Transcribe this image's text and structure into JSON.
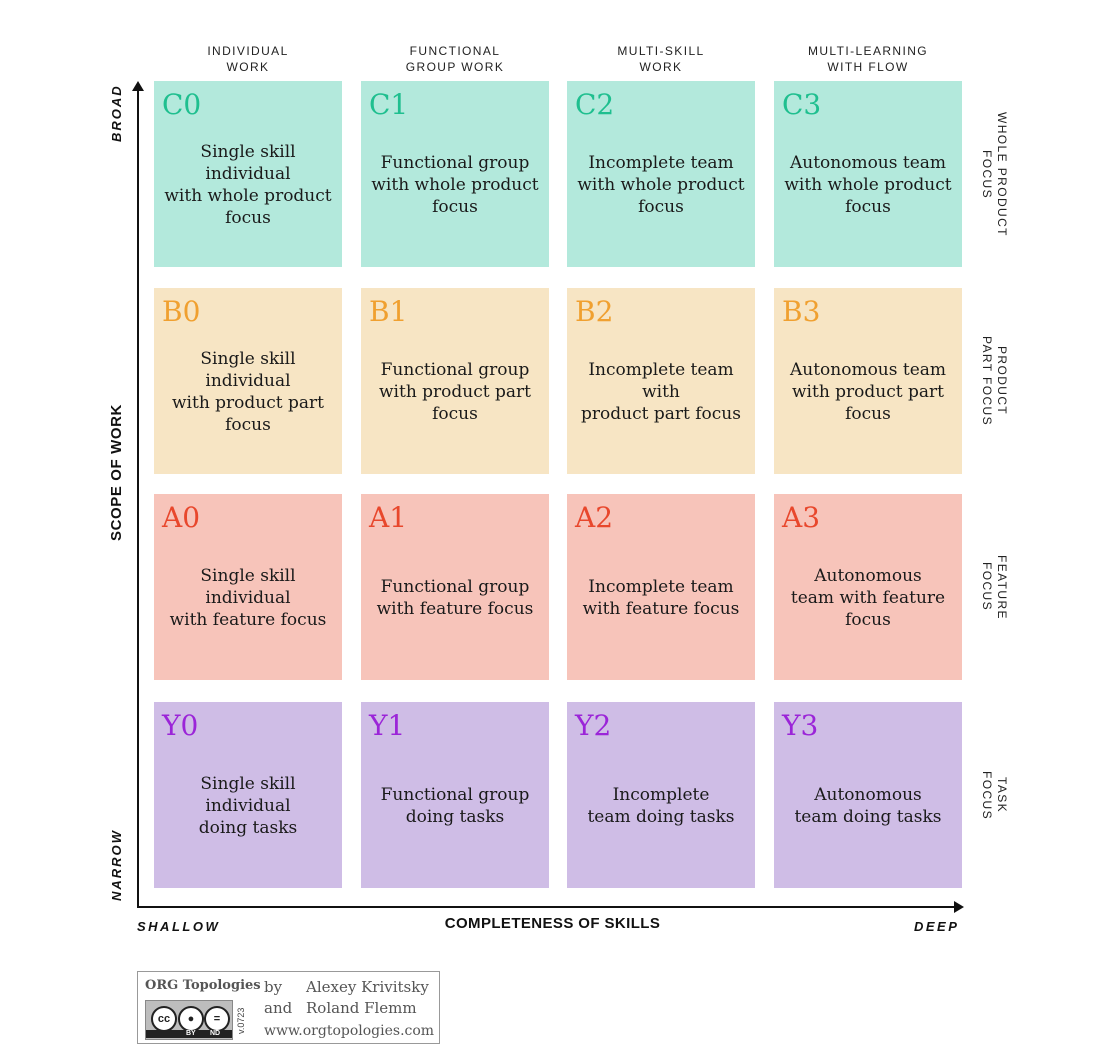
{
  "columns": [
    {
      "label": "INDIVIDUAL\nWORK"
    },
    {
      "label": "FUNCTIONAL\nGROUP WORK"
    },
    {
      "label": "MULTI-SKILL\nWORK"
    },
    {
      "label": "MULTI-LEARNING\nWITH FLOW"
    }
  ],
  "rows": [
    {
      "id": "C",
      "label": "WHOLE PRODUCT\nFOCUS",
      "cells": [
        {
          "code": "C0",
          "text": "Single skill\nindividual\nwith whole product\nfocus"
        },
        {
          "code": "C1",
          "text": "Functional group\nwith whole product\nfocus"
        },
        {
          "code": "C2",
          "text": "Incomplete team\nwith whole product\nfocus"
        },
        {
          "code": "C3",
          "text": "Autonomous team\nwith whole product\nfocus"
        }
      ]
    },
    {
      "id": "B",
      "label": "PRODUCT\nPART FOCUS",
      "cells": [
        {
          "code": "B0",
          "text": "Single skill\nindividual\nwith product part\nfocus"
        },
        {
          "code": "B1",
          "text": "Functional group\nwith product part\nfocus"
        },
        {
          "code": "B2",
          "text": "Incomplete team\nwith\nproduct part focus"
        },
        {
          "code": "B3",
          "text": "Autonomous team\nwith product part\nfocus"
        }
      ]
    },
    {
      "id": "A",
      "label": "FEATURE\nFOCUS",
      "cells": [
        {
          "code": "A0",
          "text": "Single skill\nindividual\nwith feature focus"
        },
        {
          "code": "A1",
          "text": "Functional group\nwith feature focus"
        },
        {
          "code": "A2",
          "text": "Incomplete team\nwith feature focus"
        },
        {
          "code": "A3",
          "text": "Autonomous\nteam with feature\nfocus"
        }
      ]
    },
    {
      "id": "Y",
      "label": "TASK\nFOCUS",
      "cells": [
        {
          "code": "Y0",
          "text": "Single skill\nindividual\ndoing tasks"
        },
        {
          "code": "Y1",
          "text": "Functional group\ndoing tasks"
        },
        {
          "code": "Y2",
          "text": "Incomplete\nteam doing tasks"
        },
        {
          "code": "Y3",
          "text": "Autonomous\nteam doing tasks"
        }
      ]
    }
  ],
  "axes": {
    "y_title": "SCOPE OF WORK",
    "y_high": "BROAD",
    "y_low": "NARROW",
    "x_title": "COMPLETENESS OF SKILLS",
    "x_low": "SHALLOW",
    "x_high": "DEEP"
  },
  "footer": {
    "brand": "ORG Topologies",
    "by": "by",
    "and": "and",
    "author1": "Alexey Krivitsky",
    "author2": "Roland Flemm",
    "url": "www.orgtopologies.com",
    "version": "v.0723",
    "license_cc": "cc",
    "license_by": "BY",
    "license_nd": "ND"
  },
  "colors": {
    "row_C": "#b3e9dc",
    "row_B": "#f7e5c4",
    "row_A": "#f7c4ba",
    "row_Y": "#cfbde6",
    "code_C": "#1fbf8f",
    "code_B": "#f0a030",
    "code_A": "#e8472c",
    "code_Y": "#9b25d8"
  },
  "icons": [
    "creative-commons-icon",
    "attribution-icon",
    "no-derivatives-icon"
  ]
}
